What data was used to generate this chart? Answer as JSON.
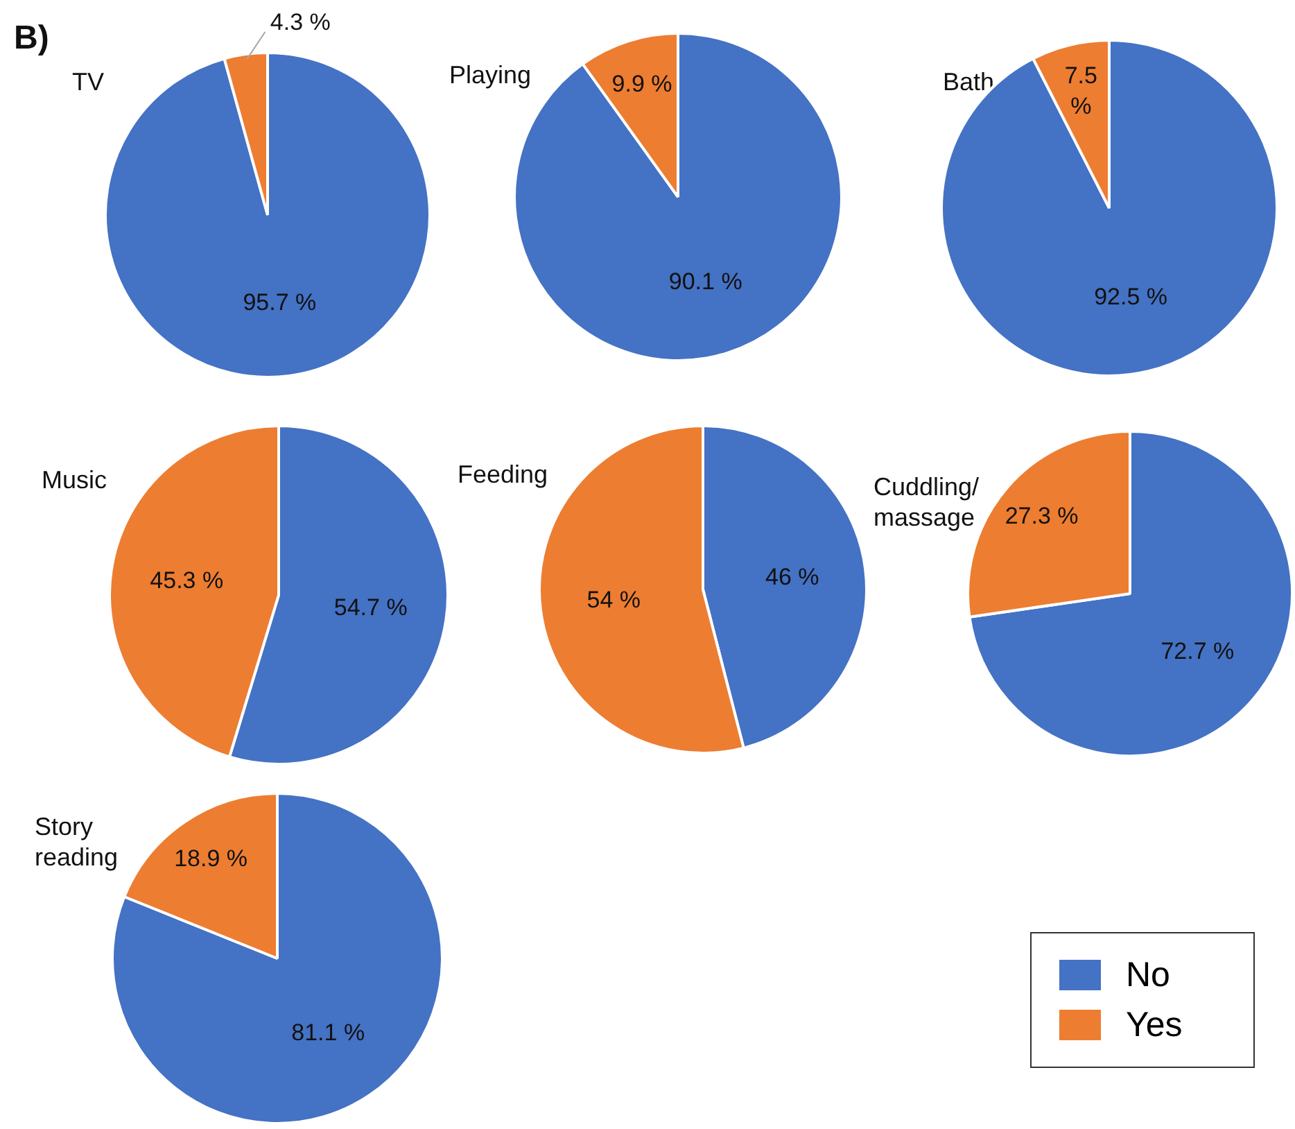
{
  "chart_data": [
    {
      "type": "pie",
      "title": "TV",
      "annotations": [
        "B)"
      ],
      "categories": [
        null,
        null
      ],
      "values": [
        95.7,
        4.3
      ],
      "colors": [
        "#4472c4",
        "#ed7d31"
      ],
      "value_labels": [
        "95.7 %",
        "4.3 %"
      ]
    },
    {
      "type": "pie",
      "title": "Playing",
      "categories": [
        null,
        null
      ],
      "values": [
        90.1,
        9.9
      ],
      "colors": [
        "#4472c4",
        "#ed7d31"
      ],
      "value_labels": [
        "90.1 %",
        "9.9 %"
      ]
    },
    {
      "type": "pie",
      "title": "Bath",
      "categories": [
        null,
        null
      ],
      "values": [
        92.5,
        7.5
      ],
      "colors": [
        "#4472c4",
        "#ed7d31"
      ],
      "value_labels": [
        "92.5 %",
        "7.5 %"
      ]
    },
    {
      "type": "pie",
      "title": "Music",
      "categories": [
        null,
        null
      ],
      "values": [
        54.7,
        45.3
      ],
      "colors": [
        "#4472c4",
        "#ed7d31"
      ],
      "value_labels": [
        "54.7 %",
        "45.3 %"
      ]
    },
    {
      "type": "pie",
      "title": "Feeding",
      "categories": [
        null,
        null
      ],
      "values": [
        46,
        54
      ],
      "colors": [
        "#4472c4",
        "#ed7d31"
      ],
      "value_labels": [
        "46 %",
        "54 %"
      ]
    },
    {
      "type": "pie",
      "title": "Cuddling/ massage",
      "categories": [
        null,
        null
      ],
      "values": [
        72.7,
        27.3
      ],
      "colors": [
        "#4472c4",
        "#ed7d31"
      ],
      "value_labels": [
        "72.7 %",
        "27.3 %"
      ]
    },
    {
      "type": "pie",
      "title": "Story reading",
      "categories": [
        "No",
        "Yes"
      ],
      "values": [
        81.1,
        18.9
      ],
      "colors": [
        "#4472c4",
        "#ed7d31"
      ],
      "value_labels": [
        "81.1 %",
        "18.9 %"
      ],
      "legend": "right"
    }
  ]
}
